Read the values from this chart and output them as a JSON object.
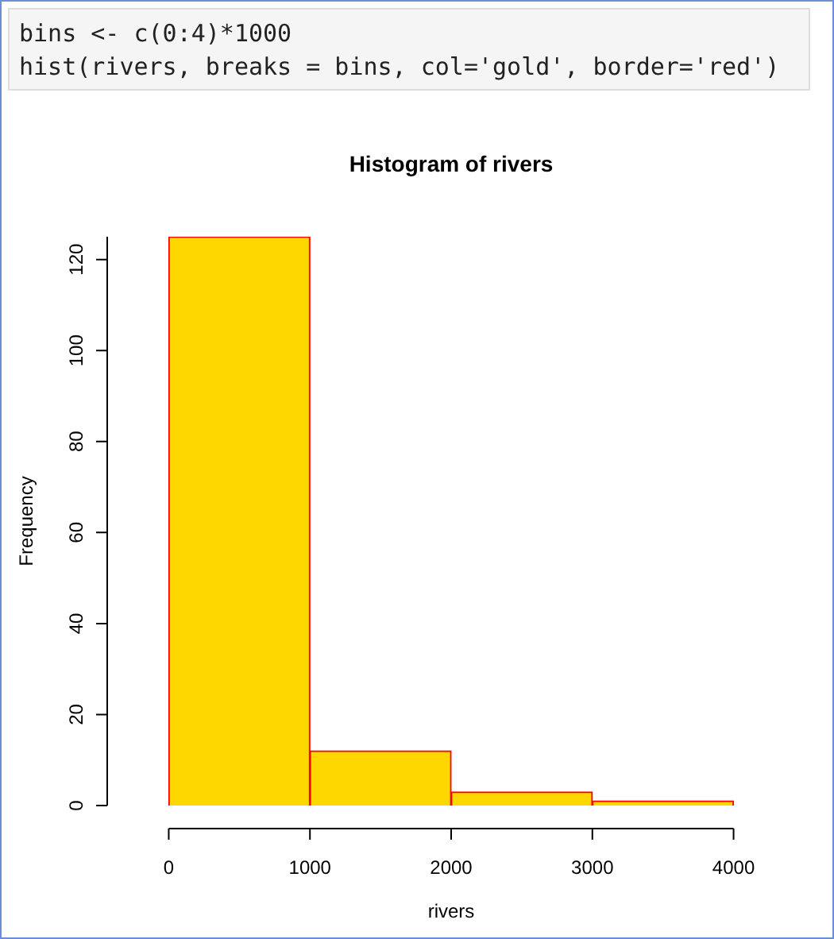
{
  "chart_data": {
    "type": "histogram",
    "title": "Histogram of rivers",
    "xlabel": "rivers",
    "ylabel": "Frequency",
    "bins": [
      0,
      1000,
      2000,
      3000,
      4000
    ],
    "values": [
      125,
      12,
      3,
      1
    ],
    "color": "#ffd700",
    "xlim": [
      0,
      4000
    ],
    "xticks": [
      0,
      1000,
      2000,
      3000,
      4000
    ],
    "ylim": [
      0,
      125
    ],
    "yticks": [
      0,
      20,
      40,
      60,
      80,
      100,
      120
    ],
    "grid": false,
    "legend": false,
    "annotations": [
      "bins <- c(0:4)*1000",
      "hist(rivers, breaks = bins, col='gold', border='red')"
    ]
  }
}
